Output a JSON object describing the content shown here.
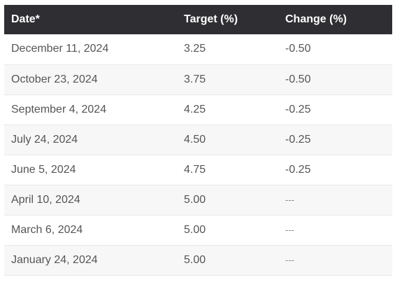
{
  "table": {
    "headers": [
      "Date*",
      "Target (%)",
      "Change (%)"
    ],
    "rows": [
      [
        "December 11, 2024",
        "3.25",
        "-0.50"
      ],
      [
        "October 23, 2024",
        "3.75",
        "-0.50"
      ],
      [
        "September 4, 2024",
        "4.25",
        "-0.25"
      ],
      [
        "July 24, 2024",
        "4.50",
        "-0.25"
      ],
      [
        "June 5, 2024",
        "4.75",
        "-0.25"
      ],
      [
        "April 10, 2024",
        "5.00",
        "---"
      ],
      [
        "March 6, 2024",
        "5.00",
        "---"
      ],
      [
        "January 24, 2024",
        "5.00",
        "---"
      ]
    ]
  },
  "colors": {
    "header_bg": "#2f2f33",
    "header_text": "#ffffff",
    "cell_text": "#555555",
    "stripe": "#f7f7f7"
  }
}
